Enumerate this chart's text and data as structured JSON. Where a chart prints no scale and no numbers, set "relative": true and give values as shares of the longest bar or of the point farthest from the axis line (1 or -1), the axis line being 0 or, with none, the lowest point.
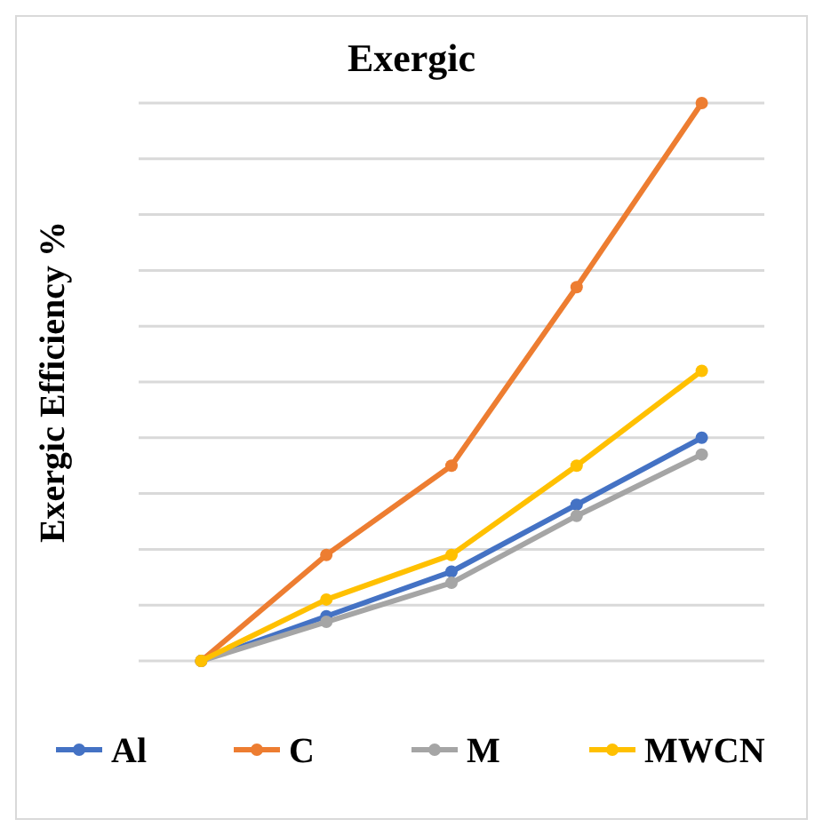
{
  "chart_data": {
    "type": "line",
    "title": "Exergic",
    "ylabel": "Exergic Efficiency %",
    "relative": true,
    "grid": true,
    "legend": "bottom",
    "marker": "circle",
    "line_style": "solid",
    "categories": [
      null,
      null,
      null,
      null,
      null
    ],
    "series": [
      {
        "name": "Al",
        "color": "#4472c4",
        "values": [
          0,
          0.08,
          0.16,
          0.28,
          0.4
        ]
      },
      {
        "name": "C",
        "color": "#ed7d31",
        "values": [
          0,
          0.19,
          0.35,
          0.67,
          1
        ]
      },
      {
        "name": "M",
        "color": "#a5a5a5",
        "values": [
          0,
          0.07,
          0.14,
          0.26,
          0.37
        ]
      },
      {
        "name": "MWCN",
        "color": "#ffc000",
        "values": [
          0,
          0.11,
          0.19,
          0.35,
          0.52
        ]
      }
    ]
  }
}
